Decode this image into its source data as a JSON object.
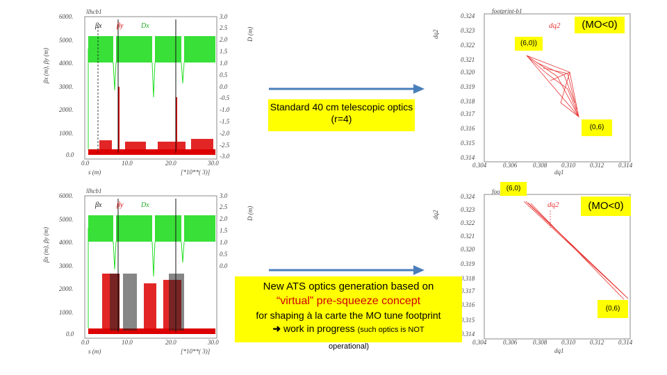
{
  "top_optics": {
    "title": "llhcb1",
    "legend": [
      "βx",
      "βy",
      "Dx"
    ],
    "ylabel_left": "βx (m), βy (m)",
    "ylabel_right": "D (m)",
    "xlabel": "s (m)",
    "xunit": "[*10**( 3)]",
    "y_ticks": [
      "6000.",
      "5000.",
      "4000.",
      "3000.",
      "2000.",
      "1000.",
      "0.0"
    ],
    "d_ticks": [
      "3.0",
      "2.5",
      "2.0",
      "1.5",
      "1.0",
      "0.5",
      "0.0",
      "-0.5",
      "-1.0",
      "-1.5",
      "-2.0",
      "-2.5",
      "-3.0"
    ],
    "x_ticks": [
      "0.0",
      "10.0",
      "20.0",
      "30.0"
    ]
  },
  "bottom_optics": {
    "title": "llhcb1",
    "legend": [
      "βx",
      "βy",
      "Dx"
    ],
    "ylabel_left": "βx (m), βy (m)",
    "ylabel_right": "D (m)",
    "xlabel": "s (m)",
    "xunit": "[*10**( 3)]",
    "y_ticks": [
      "6000.",
      "5000.",
      "4000.",
      "3000.",
      "2000.",
      "1000.",
      "0.0"
    ],
    "d_ticks": [
      "3.0",
      "2.5",
      "2.0",
      "1.5",
      "1.0",
      "0.5",
      "0.0"
    ],
    "x_ticks": [
      "0.0",
      "10.0",
      "20.0",
      "30.0"
    ]
  },
  "top_footprint": {
    "title": "footprint-b1",
    "ylabel": "dq2",
    "xlabel": "dq1",
    "inner_label": "dq2",
    "y_ticks": [
      "0.324",
      "0.323",
      "0.322",
      "0.321",
      "0.320",
      "0.319",
      "0.318",
      "0.317",
      "0.316",
      "0.315",
      "0.314"
    ],
    "x_ticks": [
      "0.304",
      "0.306",
      "0.308",
      "0.310",
      "0.312",
      "0.314"
    ]
  },
  "bottom_footprint": {
    "title": "footprint-b1",
    "ylabel": "dq2",
    "xlabel": "dq1",
    "inner_label": "dq2",
    "y_ticks": [
      "0.324",
      "0.323",
      "0.322",
      "0.321",
      "0.320",
      "0.319",
      "0.318",
      "0.317",
      "0.316",
      "0.315",
      "0.314"
    ],
    "x_ticks": [
      "0.304",
      "0.306",
      "0.308",
      "0.310",
      "0.312",
      "0.314"
    ]
  },
  "callouts": {
    "mo_top": "(MO<0)",
    "label_60_top": "(6,0))",
    "label_06_top": "(0,6)",
    "label_60_bottom": "(6,0)",
    "mo_bottom": "(MO<0)",
    "label_06_bottom": "(0,6)",
    "standard_optics": "Standard 40 cm telescopic optics  (r=4)",
    "ats_line1": "New ATS optics generation based on",
    "ats_line2": "“virtual” pre-squeeze concept",
    "ats_line3": "for shaping à la carte the MO tune footprint",
    "ats_line4_main": " work in progress",
    "ats_line4_small": "(such optics is NOT",
    "ats_line5": "operational)"
  },
  "colors": {
    "beta_x": "#111111",
    "beta_y": "#dd0000",
    "dispersion": "#22dd22",
    "footprint": "#e83030",
    "arrow": "#4a7ebb",
    "callout_bg": "#ffff00"
  }
}
